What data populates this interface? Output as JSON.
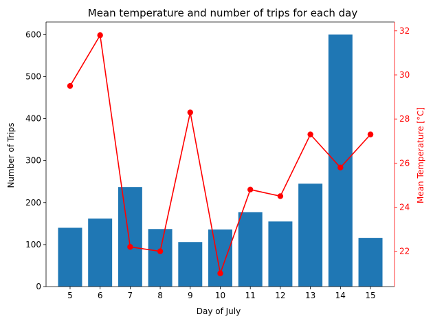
{
  "chart_data": {
    "type": "bar",
    "title": "Mean temperature and number of trips for each day",
    "xlabel": "Day of July",
    "ylabel": "Number of Trips",
    "y2label": "Mean Temperature [°C]",
    "categories": [
      "5",
      "6",
      "7",
      "8",
      "9",
      "10",
      "11",
      "12",
      "13",
      "14",
      "15"
    ],
    "series": [
      {
        "name": "",
        "type": "bar",
        "axis": "left",
        "color": "#1f77b4",
        "values": [
          140,
          162,
          237,
          137,
          106,
          136,
          177,
          155,
          245,
          600,
          116
        ]
      },
      {
        "name": "",
        "type": "line",
        "axis": "right",
        "color": "#ff0000",
        "values": [
          29.5,
          31.8,
          22.2,
          22.0,
          28.3,
          21.0,
          24.8,
          24.5,
          27.3,
          25.8,
          27.3
        ]
      }
    ],
    "ylim": [
      0,
      630
    ],
    "y2lim": [
      20.4,
      32.4
    ],
    "yticks": [
      0,
      100,
      200,
      300,
      400,
      500,
      600
    ],
    "y2ticks": [
      22,
      24,
      26,
      28,
      30,
      32
    ],
    "y2_axis_color": "#ff0000",
    "grid": false,
    "legend": "none"
  }
}
